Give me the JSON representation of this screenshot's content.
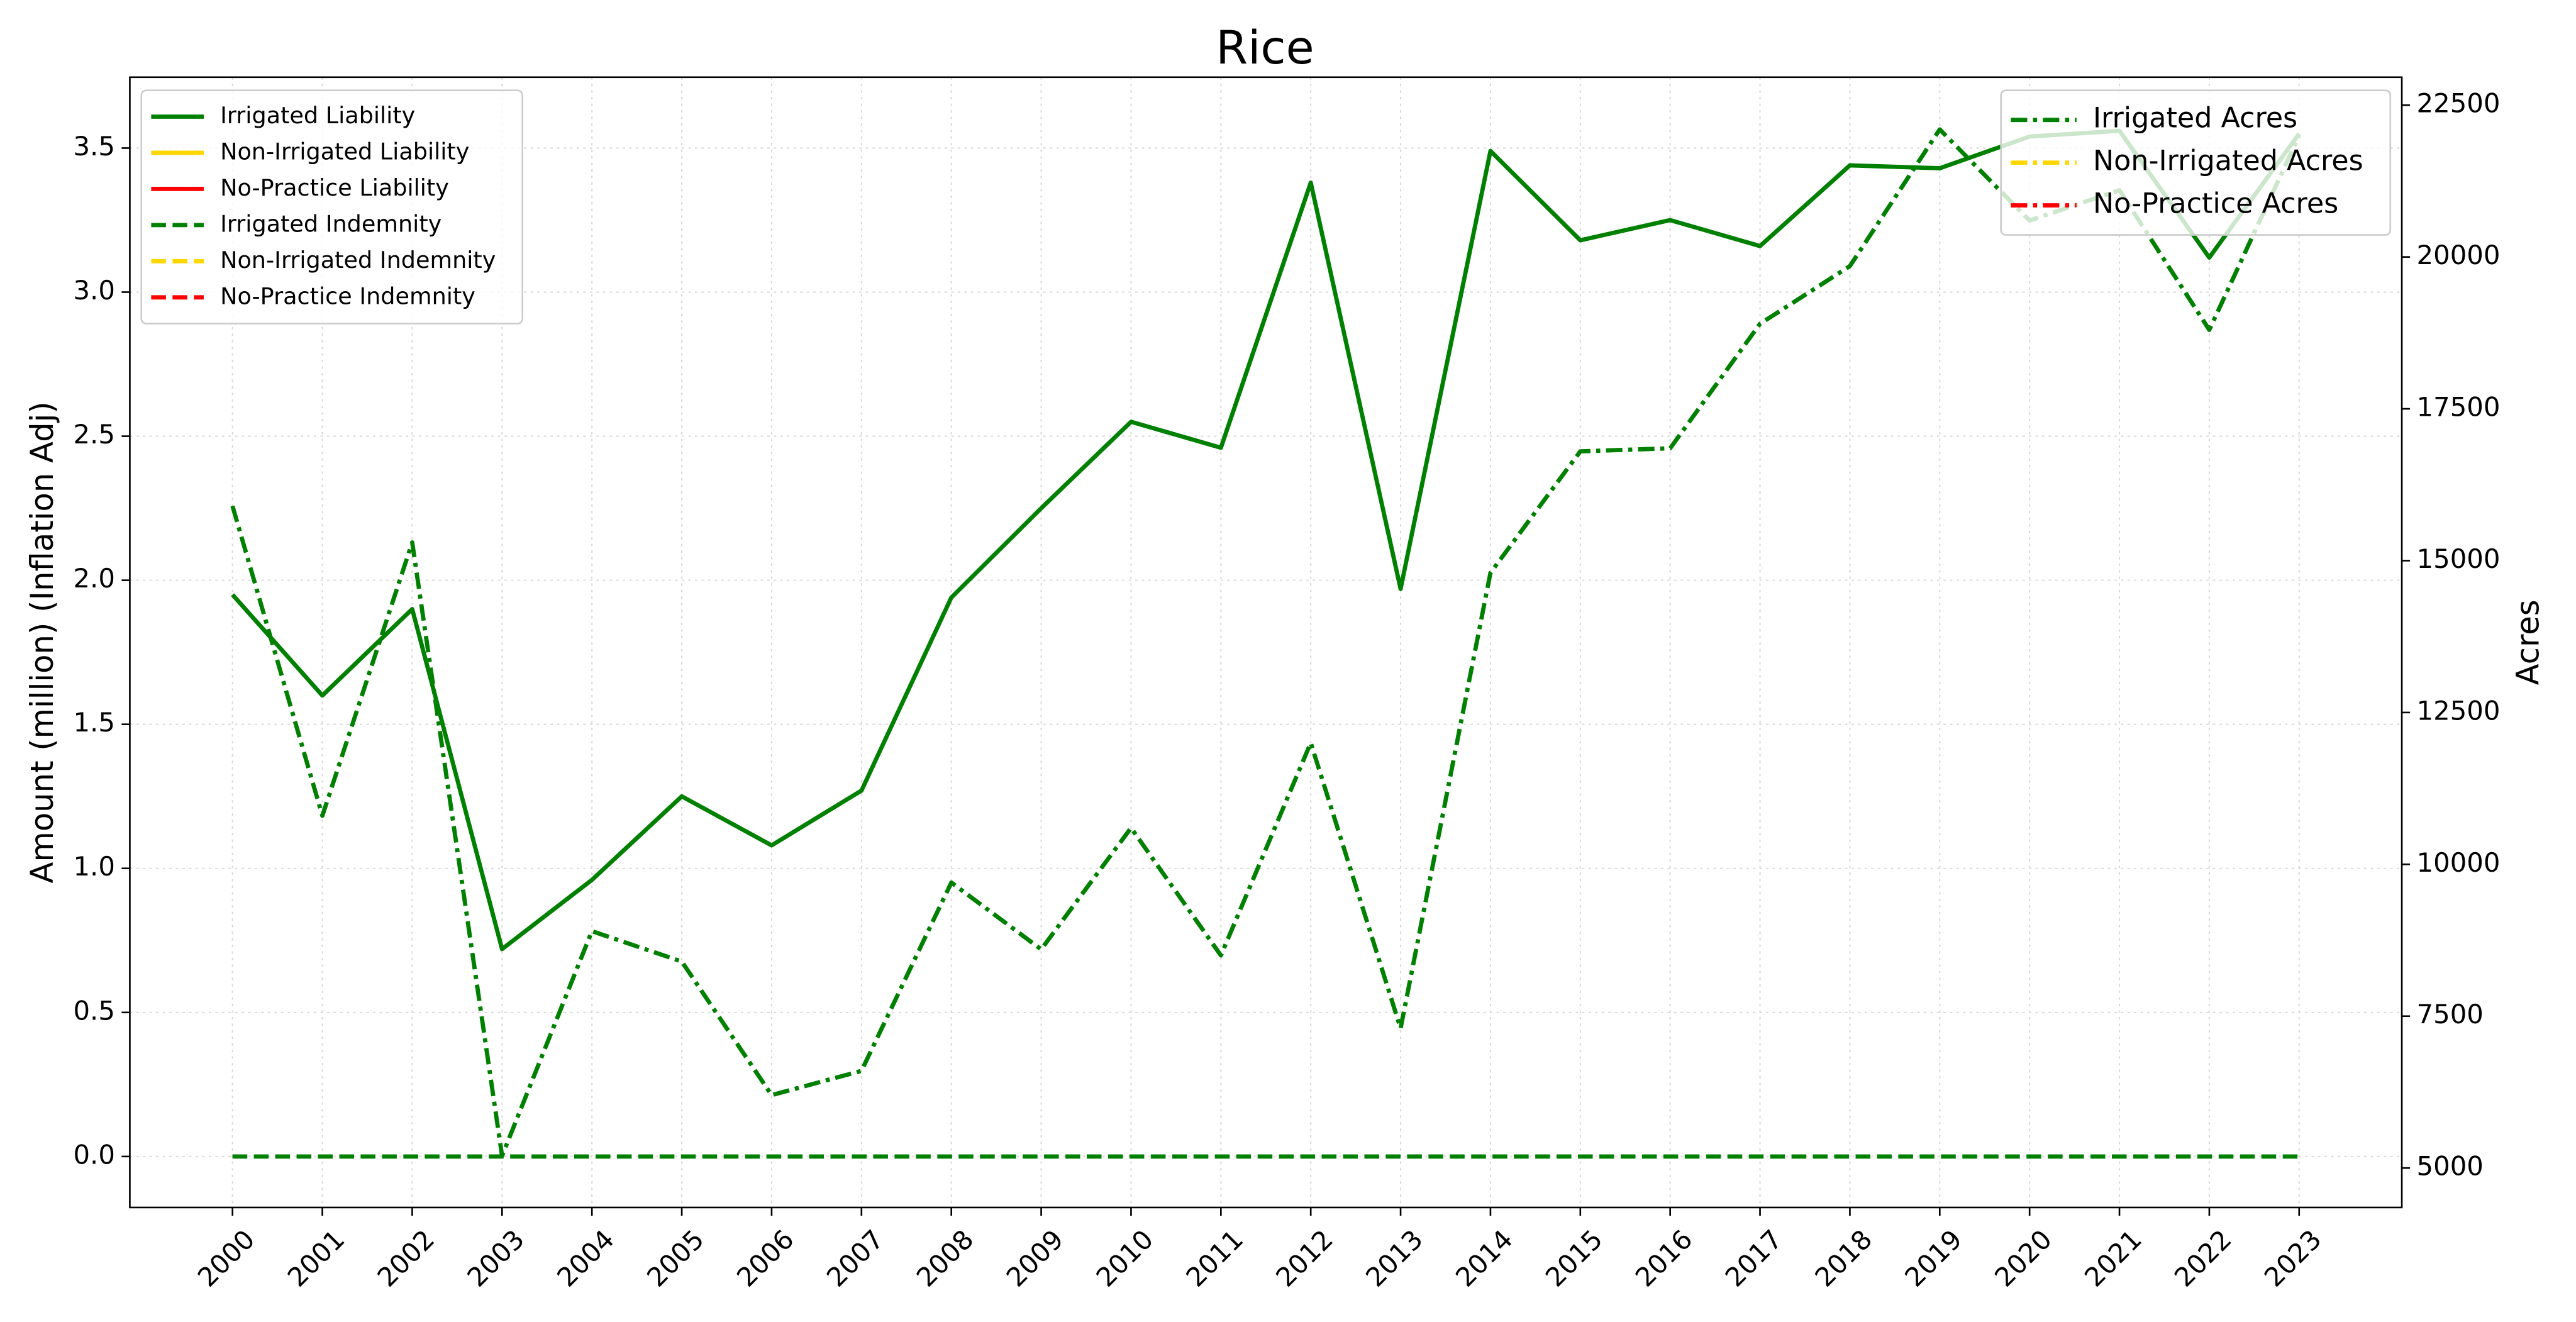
{
  "chart_data": {
    "type": "line",
    "title": "Rice",
    "ylabel": "Amount (million) (Inflation Adj)",
    "y2label": "Acres",
    "categories": [
      "2000",
      "2001",
      "2002",
      "2003",
      "2004",
      "2005",
      "2006",
      "2007",
      "2008",
      "2009",
      "2010",
      "2011",
      "2012",
      "2013",
      "2014",
      "2015",
      "2016",
      "2017",
      "2018",
      "2019",
      "2020",
      "2021",
      "2022",
      "2023"
    ],
    "series": [
      {
        "name": "Irrigated Liability",
        "color": "#008000",
        "linestyle": "solid",
        "values": [
          1.95,
          1.6,
          1.9,
          0.72,
          0.96,
          1.25,
          1.08,
          1.27,
          1.94,
          2.25,
          2.55,
          2.46,
          3.38,
          1.97,
          3.49,
          3.18,
          3.25,
          3.16,
          3.44,
          3.43,
          3.54,
          3.56,
          3.12,
          3.55
        ]
      },
      {
        "name": "Non-Irrigated Liability",
        "color": "#ffd700",
        "linestyle": "solid",
        "values": [
          null,
          null,
          null,
          null,
          null,
          null,
          null,
          null,
          null,
          null,
          null,
          null,
          null,
          null,
          null,
          null,
          null,
          null,
          null,
          null,
          null,
          null,
          null,
          null
        ]
      },
      {
        "name": "No-Practice Liability",
        "color": "#ff0000",
        "linestyle": "solid",
        "values": [
          null,
          null,
          null,
          null,
          null,
          null,
          null,
          null,
          null,
          null,
          null,
          null,
          null,
          null,
          null,
          null,
          null,
          null,
          null,
          null,
          null,
          null,
          null,
          null
        ]
      },
      {
        "name": "Irrigated Indemnity",
        "color": "#008000",
        "linestyle": "dashed",
        "values": [
          0,
          0,
          0,
          0,
          0,
          0,
          0,
          0,
          0,
          0,
          0,
          0,
          0,
          0,
          0,
          0,
          0,
          0,
          0,
          0,
          0,
          0,
          0,
          0
        ]
      },
      {
        "name": "Non-Irrigated Indemnity",
        "color": "#ffd700",
        "linestyle": "dashed",
        "values": [
          null,
          null,
          null,
          null,
          null,
          null,
          null,
          null,
          null,
          null,
          null,
          null,
          null,
          null,
          null,
          null,
          null,
          null,
          null,
          null,
          null,
          null,
          null,
          null
        ]
      },
      {
        "name": "No-Practice Indemnity",
        "color": "#ff0000",
        "linestyle": "dashed",
        "values": [
          null,
          null,
          null,
          null,
          null,
          null,
          null,
          null,
          null,
          null,
          null,
          null,
          null,
          null,
          null,
          null,
          null,
          null,
          null,
          null,
          null,
          null,
          null,
          null
        ]
      },
      {
        "name": "Irrigated Acres",
        "color": "#008000",
        "linestyle": "dashdot",
        "axis": "y2",
        "values": [
          15900,
          10800,
          15300,
          5200,
          8900,
          8400,
          6200,
          6600,
          9700,
          8600,
          10600,
          8500,
          12000,
          7300,
          14800,
          16800,
          16850,
          18900,
          19850,
          22100,
          20600,
          21100,
          18800,
          22000
        ]
      },
      {
        "name": "Non-Irrigated Acres",
        "color": "#ffd700",
        "linestyle": "dashdot",
        "axis": "y2",
        "values": [
          null,
          null,
          null,
          null,
          null,
          null,
          null,
          null,
          null,
          null,
          null,
          null,
          null,
          null,
          null,
          null,
          null,
          null,
          null,
          null,
          null,
          null,
          null,
          null
        ]
      },
      {
        "name": "No-Practice Acres",
        "color": "#ff0000",
        "linestyle": "dashdot",
        "axis": "y2",
        "values": [
          null,
          null,
          null,
          null,
          null,
          null,
          null,
          null,
          null,
          null,
          null,
          null,
          null,
          null,
          null,
          null,
          null,
          null,
          null,
          null,
          null,
          null,
          null,
          null
        ]
      }
    ],
    "ylim": [
      -0.177,
      3.746
    ],
    "yticks": [
      {
        "value": 0,
        "label": "0.0"
      },
      0.5,
      {
        "value": 1,
        "label": "1.0"
      },
      1.5,
      {
        "value": 2,
        "label": "2.0"
      },
      2.5,
      {
        "value": 3,
        "label": "3.0"
      },
      3.5
    ],
    "y2lim": [
      4350,
      22960
    ],
    "y2ticks": [
      5000,
      7500,
      10000,
      12500,
      15000,
      17500,
      20000,
      22500
    ],
    "grid": true,
    "legend": "upper left",
    "legend2": "upper right"
  }
}
